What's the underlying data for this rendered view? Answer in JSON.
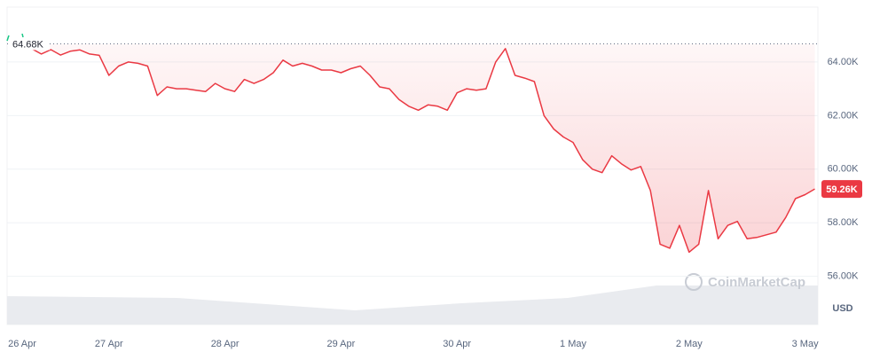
{
  "chart_data": {
    "type": "line",
    "color": "#ea3943",
    "categories": [
      "26 Apr",
      null,
      null,
      null,
      null,
      null,
      null,
      null,
      null,
      null,
      null,
      null,
      "27 Apr",
      null,
      null,
      null,
      null,
      null,
      null,
      null,
      null,
      null,
      null,
      null,
      "28 Apr",
      null,
      null,
      null,
      null,
      null,
      null,
      null,
      null,
      null,
      null,
      null,
      "29 Apr",
      null,
      null,
      null,
      null,
      null,
      null,
      null,
      null,
      null,
      null,
      null,
      "30 Apr",
      null,
      null,
      null,
      null,
      null,
      null,
      null,
      null,
      null,
      null,
      null,
      "1 May",
      null,
      null,
      null,
      null,
      null,
      null,
      null,
      null,
      null,
      null,
      null,
      "2 May",
      null,
      null,
      null,
      null,
      null,
      null,
      null,
      null,
      null,
      null,
      null,
      "3 May",
      null
    ],
    "values": [
      null,
      null,
      null,
      null,
      64500,
      64300,
      64460,
      64260,
      64400,
      64450,
      64300,
      64250,
      63500,
      63850,
      64000,
      63950,
      63850,
      62750,
      63070,
      63000,
      63000,
      62950,
      62900,
      63200,
      63000,
      62900,
      63350,
      63200,
      63350,
      63600,
      64070,
      63850,
      63950,
      63850,
      63700,
      63700,
      63600,
      63750,
      63850,
      63500,
      63070,
      63000,
      62600,
      62350,
      62200,
      62400,
      62350,
      62200,
      62850,
      63000,
      62950,
      63000,
      64000,
      64500,
      63500,
      63400,
      63270,
      62000,
      61500,
      61200,
      61000,
      60350,
      60000,
      59870,
      60500,
      60200,
      59970,
      60100,
      59200,
      57200,
      57050,
      57900,
      56900,
      57200,
      59200,
      57400,
      57900,
      58050,
      57400,
      57450,
      57550,
      57650,
      58200,
      58900,
      59050,
      59260
    ],
    "ylim": [
      54200,
      66050
    ],
    "yticks": [
      {
        "value": 56000,
        "label": "56.00K"
      },
      {
        "value": 58000,
        "label": "58.00K"
      },
      {
        "value": 60000,
        "label": "60.00K"
      },
      {
        "value": 62000,
        "label": "62.00K"
      },
      {
        "value": 64000,
        "label": "64.00K"
      }
    ],
    "reference": {
      "value": 64680,
      "label": "64.68K"
    },
    "current": {
      "value": 59260,
      "label": "59.26K"
    },
    "currency": "USD",
    "watermark": "CoinMarketCap",
    "grid": true
  }
}
